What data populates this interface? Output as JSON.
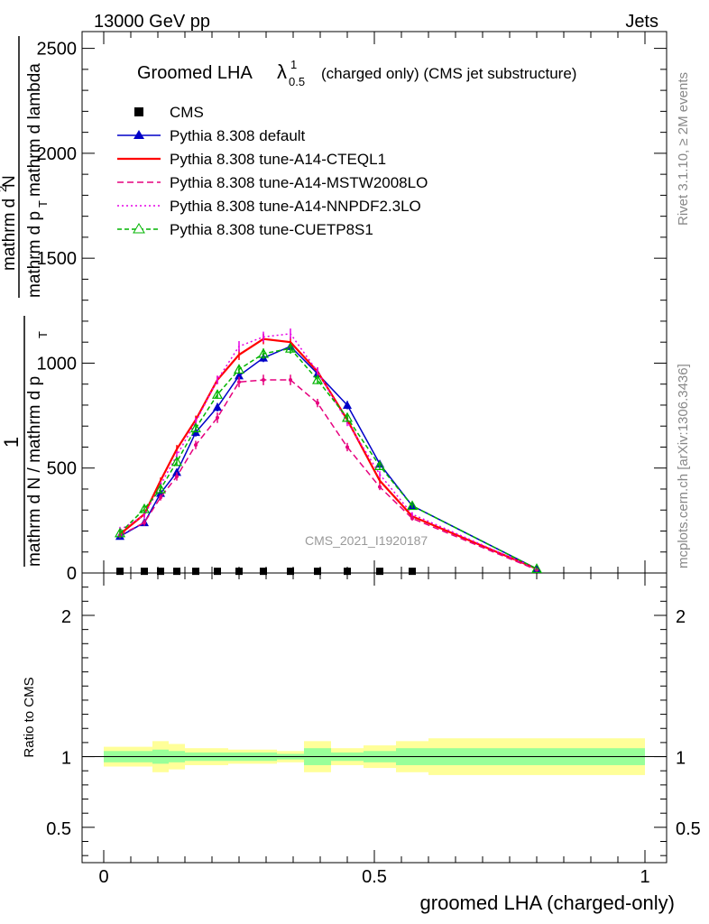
{
  "header": {
    "left": "13000 GeV pp",
    "right": "Jets",
    "side_rivet": "Rivet 3.1.10, ≥ 2M events",
    "side_mcplots": "mcplots.cern.ch [arXiv:1306.3436]"
  },
  "title": {
    "main": "Groomed LHA",
    "lambda": "λ",
    "sup": "1",
    "sub": "0.5",
    "suffix": "(charged only) (CMS jet substructure)"
  },
  "watermark": "CMS_2021_I1920187",
  "ylabel": {
    "one": "1",
    "den1": "mathrm d N / mathrm d p",
    "den1_sub": "T",
    "num": "mathrm d",
    "num_sup": "2",
    "num2": "N",
    "den2a": "mathrm d p",
    "den2_sub": "T",
    "den2b": "mathrm d lambda"
  },
  "ratio_ylabel": "Ratio to CMS",
  "xlabel": "groomed LHA (charged-only)",
  "colors": {
    "cms": "#000000",
    "default": "#0000c8",
    "cteql1": "#ff0000",
    "mstw": "#e6007e",
    "nnpdf": "#e600e6",
    "cuetp": "#00b400",
    "band_inner": "#99ff99",
    "band_outer": "#ffff99"
  },
  "chart_data": {
    "type": "line",
    "xlim": [
      -0.04,
      1.04
    ],
    "main_ylim": [
      0,
      2580
    ],
    "main_yticks": [
      0,
      500,
      1000,
      1500,
      2000,
      2500
    ],
    "main_ytick_labels": [
      "0",
      "500",
      "1000",
      "1500",
      "2000",
      "2500"
    ],
    "ratio_ylim": [
      0.25,
      2.3
    ],
    "ratio_yticks": [
      0.5,
      1,
      2
    ],
    "ratio_ytick_labels": [
      "0.5",
      "1",
      "2"
    ],
    "xticks": [
      0,
      0.5,
      1
    ],
    "xtick_labels": [
      "0",
      "0.5",
      "1"
    ],
    "x": [
      0.03,
      0.075,
      0.105,
      0.135,
      0.17,
      0.21,
      0.25,
      0.295,
      0.345,
      0.395,
      0.45,
      0.51,
      0.57,
      0.8
    ],
    "cms_x": [
      0.03,
      0.075,
      0.105,
      0.135,
      0.17,
      0.21,
      0.25,
      0.295,
      0.345,
      0.395,
      0.45,
      0.51,
      0.57
    ],
    "cms_y": [
      8,
      8,
      8,
      8,
      8,
      8,
      8,
      8,
      8,
      8,
      8,
      8,
      8
    ],
    "series": [
      {
        "name": "CMS",
        "key": "cms"
      },
      {
        "name": "Pythia 8.308 default",
        "key": "default",
        "dash": "",
        "marker": "filled-triangle",
        "values": [
          175,
          240,
          380,
          480,
          670,
          790,
          940,
          1025,
          1080,
          950,
          800,
          520,
          320,
          20
        ],
        "errors": [
          15,
          15,
          15,
          15,
          20,
          20,
          20,
          20,
          20,
          20,
          20,
          15,
          10,
          5
        ]
      },
      {
        "name": "Pythia 8.308 tune-A14-CTEQL1",
        "key": "cteql1",
        "dash": "",
        "marker": "none",
        "values": [
          185,
          280,
          440,
          590,
          730,
          920,
          1040,
          1115,
          1100,
          960,
          730,
          440,
          270,
          20
        ],
        "errors": [
          15,
          15,
          15,
          20,
          20,
          20,
          25,
          25,
          25,
          20,
          20,
          15,
          10,
          5
        ]
      },
      {
        "name": "Pythia 8.308 tune-A14-MSTW2008LO",
        "key": "mstw",
        "dash": "7,4",
        "marker": "dots",
        "values": [
          180,
          240,
          360,
          460,
          610,
          740,
          910,
          920,
          920,
          810,
          600,
          410,
          260,
          15
        ],
        "errors": [
          15,
          15,
          15,
          20,
          20,
          25,
          25,
          25,
          25,
          20,
          20,
          15,
          10,
          5
        ]
      },
      {
        "name": "Pythia 8.308 tune-A14-NNPDF2.3LO",
        "key": "nnpdf",
        "dash": "2,3",
        "marker": "none",
        "values": [
          205,
          275,
          420,
          560,
          720,
          920,
          1080,
          1125,
          1140,
          960,
          720,
          470,
          280,
          20
        ],
        "errors": [
          15,
          15,
          15,
          20,
          20,
          20,
          25,
          25,
          25,
          20,
          20,
          15,
          10,
          5
        ]
      },
      {
        "name": "Pythia 8.308 tune-CUETP8S1",
        "key": "cuetp",
        "dash": "5,3",
        "marker": "open-triangle",
        "values": [
          190,
          305,
          400,
          530,
          690,
          850,
          970,
          1045,
          1070,
          920,
          740,
          510,
          320,
          20
        ],
        "errors": [
          15,
          15,
          15,
          20,
          20,
          20,
          20,
          25,
          25,
          20,
          20,
          15,
          10,
          5
        ]
      }
    ],
    "ratio_bands": {
      "edges": [
        0.0,
        0.06,
        0.09,
        0.12,
        0.15,
        0.19,
        0.23,
        0.27,
        0.32,
        0.37,
        0.42,
        0.48,
        0.54,
        0.6,
        1.0
      ],
      "inner_lo": [
        0.96,
        0.96,
        0.95,
        0.96,
        0.97,
        0.97,
        0.97,
        0.97,
        0.98,
        0.94,
        0.97,
        0.96,
        0.94,
        0.94
      ],
      "inner_hi": [
        1.04,
        1.04,
        1.05,
        1.04,
        1.03,
        1.03,
        1.03,
        1.03,
        1.02,
        1.06,
        1.03,
        1.04,
        1.06,
        1.06
      ],
      "outer_lo": [
        0.93,
        0.93,
        0.89,
        0.91,
        0.94,
        0.94,
        0.95,
        0.95,
        0.96,
        0.89,
        0.94,
        0.92,
        0.89,
        0.87
      ],
      "outer_hi": [
        1.07,
        1.07,
        1.11,
        1.09,
        1.06,
        1.06,
        1.05,
        1.05,
        1.04,
        1.11,
        1.06,
        1.08,
        1.11,
        1.13
      ]
    }
  }
}
